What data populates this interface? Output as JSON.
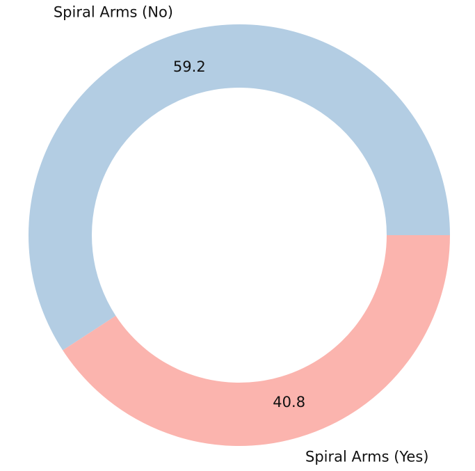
{
  "chart_data": {
    "type": "pie",
    "variant": "donut",
    "title": "",
    "categories": [
      "Spiral Arms (No)",
      "Spiral Arms (Yes)"
    ],
    "values": [
      59.2,
      40.8
    ],
    "value_labels": [
      "59.2",
      "40.8"
    ],
    "colors": [
      "#b3cde3",
      "#fbb4ae"
    ],
    "start_angle_deg": 0,
    "direction": "counterclockwise",
    "legend": "none"
  }
}
